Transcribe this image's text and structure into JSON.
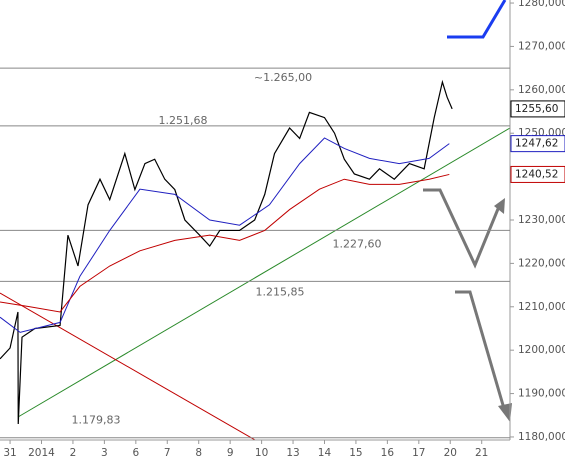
{
  "chart_data": {
    "type": "line",
    "xlim": [
      -0.32,
      15.9
    ],
    "ylim": [
      1179.3,
      1280.7
    ],
    "yticks": [
      {
        "value": 1180,
        "label": "1180,000"
      },
      {
        "value": 1190,
        "label": "1190,000"
      },
      {
        "value": 1200,
        "label": "1200,000"
      },
      {
        "value": 1210,
        "label": "1210,000"
      },
      {
        "value": 1220,
        "label": "1220,000"
      },
      {
        "value": 1230,
        "label": "1230,000"
      },
      {
        "value": 1240,
        "label": "1240,000"
      },
      {
        "value": 1250,
        "label": "1250,000"
      },
      {
        "value": 1260,
        "label": "1260,000"
      },
      {
        "value": 1270,
        "label": "1270,000"
      },
      {
        "value": 1280,
        "label": "1280,000"
      }
    ],
    "categories": [
      "31",
      "2014",
      "2",
      "3",
      "6",
      "7",
      "8",
      "9",
      "10",
      "13",
      "14",
      "15",
      "16",
      "17",
      "20",
      "21"
    ],
    "levels": [
      {
        "value": 1265,
        "label": "~1.265,00"
      },
      {
        "value": 1251.68,
        "label": "1.251,68"
      },
      {
        "value": 1227.6,
        "label": "1.227,60"
      },
      {
        "value": 1215.85,
        "label": "1.215,85"
      },
      {
        "value": 1179.83,
        "label": "1.179,83"
      }
    ],
    "series": [
      {
        "color": "#000000",
        "last_label": "1255,60",
        "x": [
          -0.32,
          0,
          0.25,
          0.26,
          0.38,
          0.79,
          1.59,
          1.84,
          2.16,
          2.48,
          2.86,
          3.17,
          3.65,
          3.97,
          4.29,
          4.6,
          4.92,
          5.24,
          5.56,
          6.03,
          6.35,
          6.67,
          7.3,
          7.78,
          8.1,
          8.41,
          8.89,
          9.21,
          9.52,
          10,
          10.32,
          10.63,
          10.95,
          11.43,
          11.75,
          12.22,
          12.7,
          13.17,
          13.49,
          13.75,
          13.9,
          14.06
        ],
        "values": [
          1198,
          1200.5,
          1208.8,
          1183,
          1203,
          1205,
          1205.7,
          1226.5,
          1219.4,
          1233.5,
          1239.4,
          1234.7,
          1245.3,
          1237,
          1243,
          1244,
          1239.4,
          1237,
          1230,
          1226.5,
          1224,
          1227.6,
          1227.6,
          1230,
          1235.9,
          1245.3,
          1251.2,
          1248.8,
          1254.8,
          1253.6,
          1250,
          1244,
          1240.6,
          1239.4,
          1241.8,
          1239.4,
          1243,
          1241.8,
          1253.6,
          1261.8,
          1258.3,
          1255.6
        ]
      },
      {
        "color": "#2020c0",
        "last_label": "1247,62",
        "x": [
          -0.32,
          0.32,
          1.59,
          2.22,
          3.17,
          4.13,
          5.24,
          6.35,
          7.3,
          8.25,
          9.21,
          10,
          10.63,
          11.43,
          12.38,
          13.33,
          13.97
        ],
        "values": [
          1207.6,
          1204.1,
          1206.4,
          1217,
          1227.6,
          1237.1,
          1235.9,
          1230,
          1228.8,
          1233.5,
          1243,
          1248.9,
          1246.5,
          1244.2,
          1243,
          1244.2,
          1247.6
        ]
      },
      {
        "color": "#c00000",
        "last_label": "1240,52",
        "x": [
          -0.32,
          0.63,
          1.59,
          2.22,
          3.17,
          4.13,
          5.24,
          6.35,
          7.3,
          8.1,
          8.89,
          9.84,
          10.63,
          11.43,
          12.38,
          13.33,
          13.97
        ],
        "values": [
          1211.1,
          1210,
          1208.8,
          1214.7,
          1219.4,
          1222.9,
          1225.3,
          1226.5,
          1225.3,
          1227.6,
          1232.4,
          1237.1,
          1239.4,
          1238.2,
          1238.2,
          1239.4,
          1240.5
        ]
      }
    ]
  }
}
